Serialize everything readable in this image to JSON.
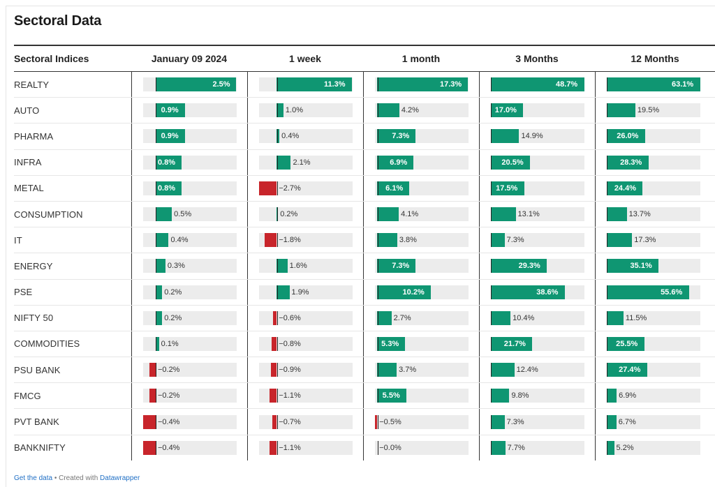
{
  "title": "Sectoral Data",
  "header": {
    "label_col": "Sectoral Indices",
    "cols": [
      "January 09 2024",
      "1 week",
      "1 month",
      "3 Months",
      "12 Months"
    ]
  },
  "footer": {
    "get_data": "Get the data",
    "separator": "•",
    "created_with": "Created with",
    "tool": "Datawrapper"
  },
  "colors": {
    "positive": "#0f9672",
    "negative": "#c8252b",
    "track": "#ececec"
  },
  "chart_data": {
    "type": "table",
    "columns": [
      "January 09 2024",
      "1 week",
      "1 month",
      "3 Months",
      "12 Months"
    ],
    "rows": [
      {
        "label": "REALTY",
        "values": [
          2.5,
          11.3,
          17.3,
          48.7,
          63.1
        ],
        "display": [
          "2.5%",
          "11.3%",
          "17.3%",
          "48.7%",
          "63.1%"
        ]
      },
      {
        "label": "AUTO",
        "values": [
          0.9,
          1.0,
          4.2,
          17.0,
          19.5
        ],
        "display": [
          "0.9%",
          "1.0%",
          "4.2%",
          "17.0%",
          "19.5%"
        ]
      },
      {
        "label": "PHARMA",
        "values": [
          0.9,
          0.4,
          7.3,
          14.9,
          26.0
        ],
        "display": [
          "0.9%",
          "0.4%",
          "7.3%",
          "14.9%",
          "26.0%"
        ]
      },
      {
        "label": "INFRA",
        "values": [
          0.8,
          2.1,
          6.9,
          20.5,
          28.3
        ],
        "display": [
          "0.8%",
          "2.1%",
          "6.9%",
          "20.5%",
          "28.3%"
        ]
      },
      {
        "label": "METAL",
        "values": [
          0.8,
          -2.7,
          6.1,
          17.5,
          24.4
        ],
        "display": [
          "0.8%",
          "−2.7%",
          "6.1%",
          "17.5%",
          "24.4%"
        ]
      },
      {
        "label": "CONSUMPTION",
        "values": [
          0.5,
          0.2,
          4.1,
          13.1,
          13.7
        ],
        "display": [
          "0.5%",
          "0.2%",
          "4.1%",
          "13.1%",
          "13.7%"
        ]
      },
      {
        "label": "IT",
        "values": [
          0.4,
          -1.8,
          3.8,
          7.3,
          17.3
        ],
        "display": [
          "0.4%",
          "−1.8%",
          "3.8%",
          "7.3%",
          "17.3%"
        ]
      },
      {
        "label": "ENERGY",
        "values": [
          0.3,
          1.6,
          7.3,
          29.3,
          35.1
        ],
        "display": [
          "0.3%",
          "1.6%",
          "7.3%",
          "29.3%",
          "35.1%"
        ]
      },
      {
        "label": "PSE",
        "values": [
          0.2,
          1.9,
          10.2,
          38.6,
          55.6
        ],
        "display": [
          "0.2%",
          "1.9%",
          "10.2%",
          "38.6%",
          "55.6%"
        ]
      },
      {
        "label": "NIFTY 50",
        "values": [
          0.2,
          -0.6,
          2.7,
          10.4,
          11.5
        ],
        "display": [
          "0.2%",
          "−0.6%",
          "2.7%",
          "10.4%",
          "11.5%"
        ]
      },
      {
        "label": "COMMODITIES",
        "values": [
          0.1,
          -0.8,
          5.3,
          21.7,
          25.5
        ],
        "display": [
          "0.1%",
          "−0.8%",
          "5.3%",
          "21.7%",
          "25.5%"
        ]
      },
      {
        "label": "PSU BANK",
        "values": [
          -0.2,
          -0.9,
          3.7,
          12.4,
          27.4
        ],
        "display": [
          "−0.2%",
          "−0.9%",
          "3.7%",
          "12.4%",
          "27.4%"
        ]
      },
      {
        "label": "FMCG",
        "values": [
          -0.2,
          -1.1,
          5.5,
          9.8,
          6.9
        ],
        "display": [
          "−0.2%",
          "−1.1%",
          "5.5%",
          "9.8%",
          "6.9%"
        ]
      },
      {
        "label": "PVT BANK",
        "values": [
          -0.4,
          -0.7,
          -0.5,
          7.3,
          6.7
        ],
        "display": [
          "−0.4%",
          "−0.7%",
          "−0.5%",
          "7.3%",
          "6.7%"
        ]
      },
      {
        "label": "BANKNIFTY",
        "values": [
          -0.4,
          -1.1,
          -0.0,
          7.7,
          5.2
        ],
        "display": [
          "−0.4%",
          "−1.1%",
          "−0.0%",
          "7.7%",
          "5.2%"
        ]
      }
    ]
  }
}
